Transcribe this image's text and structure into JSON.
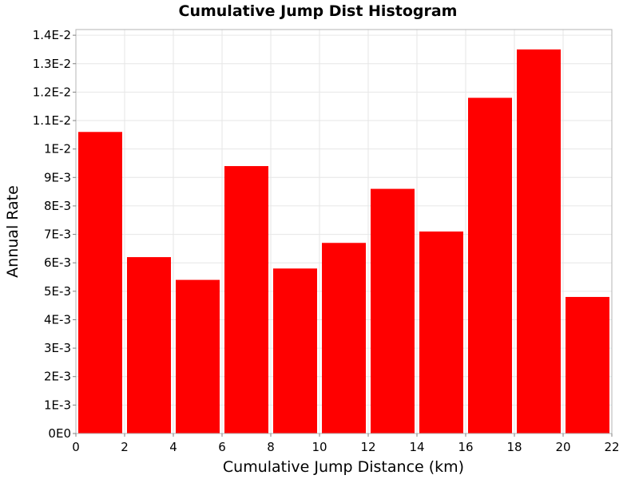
{
  "chart_data": {
    "type": "bar",
    "title": "Cumulative Jump Dist Histogram",
    "xlabel": "Cumulative Jump Distance (km)",
    "ylabel": "Annual Rate",
    "xlim": [
      0,
      22
    ],
    "ylim": [
      0,
      0.0142
    ],
    "bin_width": 2,
    "x": [
      1,
      3,
      5,
      7,
      9,
      11,
      13,
      15,
      17,
      19,
      21
    ],
    "values": [
      0.0106,
      0.0062,
      0.0054,
      0.0094,
      0.0058,
      0.0067,
      0.0086,
      0.0071,
      0.0118,
      0.0135,
      0.0048
    ],
    "xticks": [
      "0",
      "2",
      "4",
      "6",
      "8",
      "10",
      "12",
      "14",
      "16",
      "18",
      "20",
      "22"
    ],
    "yticks": [
      "0E0",
      "1E-3",
      "2E-3",
      "3E-3",
      "4E-3",
      "5E-3",
      "6E-3",
      "7E-3",
      "8E-3",
      "9E-3",
      "1E-2",
      "1.1E-2",
      "1.2E-2",
      "1.3E-2",
      "1.4E-2"
    ],
    "grid": true,
    "bar_color": "#ff0000",
    "grid_color": "#e6e6e6"
  }
}
